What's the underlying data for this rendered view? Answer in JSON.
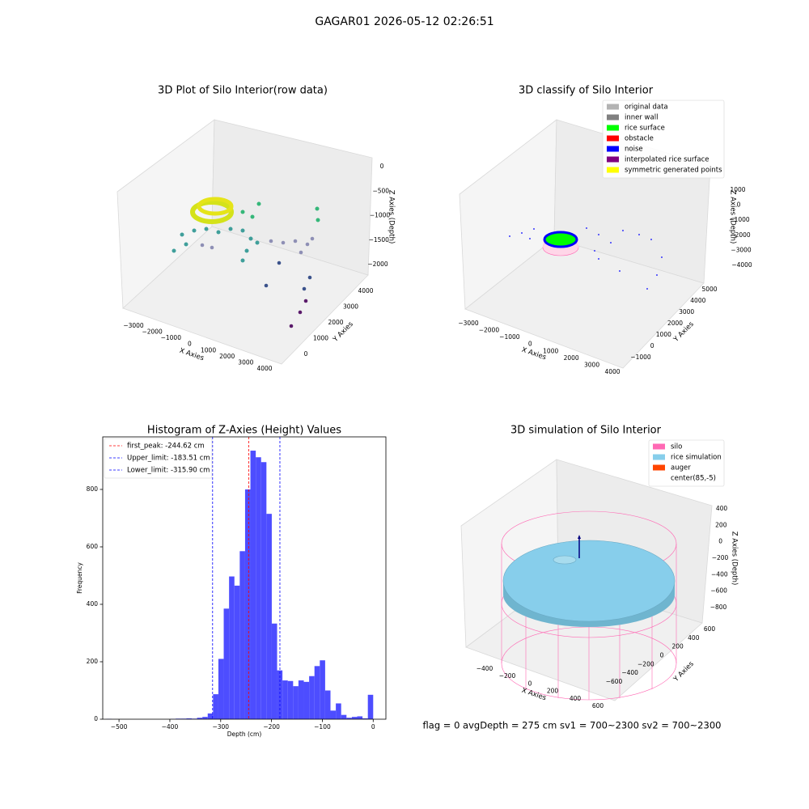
{
  "title": "GAGAR01 2026-05-12 02:26:51",
  "footer": "flag = 0     avgDepth = 275 cm  sv1 = 700~2300  sv2 = 700~2300",
  "chart_data": [
    {
      "type": "scatter3d",
      "title": "3D Plot of Silo Interior(row data)",
      "xlabel": "X Axies",
      "ylabel": "Y Axies",
      "zlabel": "Z Axies (Depth)",
      "xticks": [
        {
          "value": -3000,
          "label": "−3000"
        },
        {
          "value": -2000,
          "label": "−2000"
        },
        {
          "value": -1000,
          "label": "−1000"
        },
        0,
        1000,
        2000,
        3000,
        4000
      ],
      "yticks": [
        0,
        1000,
        2000,
        3000,
        4000
      ],
      "zticks": [
        0,
        {
          "value": -500,
          "label": "−500"
        },
        {
          "value": -1000,
          "label": "−1000"
        },
        {
          "value": -1500,
          "label": "−1500"
        },
        {
          "value": -2000,
          "label": "−2000"
        }
      ]
    },
    {
      "type": "scatter3d",
      "title": "3D classify of Silo Interior",
      "xlabel": "X Axies",
      "ylabel": "Y Axies",
      "zlabel": "Z Axies (Depth)",
      "xticks": [
        {
          "value": -3000,
          "label": "−3000"
        },
        {
          "value": -2000,
          "label": "−2000"
        },
        {
          "value": -1000,
          "label": "−1000"
        },
        0,
        1000,
        2000,
        3000,
        4000
      ],
      "yticks": [
        {
          "value": -1000,
          "label": "−1000"
        },
        0,
        1000,
        2000,
        3000,
        4000,
        5000
      ],
      "zticks": [
        1000,
        0,
        {
          "value": -1000,
          "label": "−1000"
        },
        {
          "value": -2000,
          "label": "−2000"
        },
        {
          "value": -3000,
          "label": "−3000"
        },
        {
          "value": -4000,
          "label": "−4000"
        }
      ],
      "legend": [
        {
          "label": "original data",
          "color": "#b3b3b3"
        },
        {
          "label": "inner wall",
          "color": "#808080"
        },
        {
          "label": "rice surface",
          "color": "#00ff00"
        },
        {
          "label": "obstacle",
          "color": "#ff0000"
        },
        {
          "label": "noise",
          "color": "#0000ff"
        },
        {
          "label": "interpolated rice surface",
          "color": "#800080"
        },
        {
          "label": "symmetric generated points",
          "color": "#ffff00"
        }
      ]
    },
    {
      "type": "histogram",
      "title": "Histogram of Z-Axies (Height) Values",
      "xlabel": "Depth (cm)",
      "ylabel": "Frequency",
      "color": "#4d4dff",
      "bins": [
        -525,
        -514.5,
        -504,
        -493.5,
        -483,
        -472.5,
        -462,
        -451.5,
        -441,
        -430.5,
        -420,
        -409.5,
        -399,
        -388.5,
        -378,
        -367.5,
        -357,
        -346.5,
        -336,
        -325.5,
        -315,
        -304.5,
        -294,
        -283.5,
        -273,
        -262.5,
        -252,
        -241.5,
        -231,
        -220.5,
        -210,
        -199.5,
        -189,
        -178.5,
        -168,
        -157.5,
        -147,
        -136.5,
        -126,
        -115.5,
        -105,
        -94.5,
        -84,
        -73.5,
        -63,
        -52.5,
        -42,
        -31.5,
        -21,
        -10.5,
        0
      ],
      "values": [
        1,
        0,
        0,
        0,
        0,
        0,
        0,
        0,
        0,
        0,
        0,
        0,
        1,
        2,
        2,
        3,
        2,
        5,
        8,
        20,
        87,
        210,
        385,
        497,
        465,
        585,
        800,
        935,
        912,
        895,
        715,
        333,
        170,
        135,
        133,
        115,
        135,
        130,
        150,
        185,
        205,
        100,
        30,
        55,
        15,
        5,
        8,
        10,
        3,
        85
      ],
      "xlim": [
        -532,
        25
      ],
      "ylim": [
        0,
        983
      ],
      "xticks": [
        {
          "value": -500,
          "label": "−500"
        },
        {
          "value": -400,
          "label": "−400"
        },
        {
          "value": -300,
          "label": "−300"
        },
        {
          "value": -200,
          "label": "−200"
        },
        {
          "value": -100,
          "label": "−100"
        },
        0
      ],
      "yticks": [
        0,
        200,
        400,
        600,
        800
      ],
      "legend_corner": "upper left",
      "vlines": [
        {
          "label": "first_peak: -244.62 cm",
          "value": -244.62,
          "color": "#ff0000"
        },
        {
          "label": "Upper_limit: -183.51 cm",
          "value": -183.51,
          "color": "#0000ff"
        },
        {
          "label": "Lower_limit: -315.90 cm",
          "value": -315.9,
          "color": "#0000ff"
        }
      ]
    },
    {
      "type": "scatter3d",
      "title": "3D simulation of Silo Interior",
      "xlabel": "X Axies",
      "ylabel": "Y Axies",
      "zlabel": "Z Axies (Depth)",
      "xticks": [
        {
          "value": -400,
          "label": "−400"
        },
        {
          "value": -200,
          "label": "−200"
        },
        0,
        200,
        400,
        600
      ],
      "yticks": [
        {
          "value": -600,
          "label": "−600"
        },
        {
          "value": -400,
          "label": "−400"
        },
        {
          "value": -200,
          "label": "−200"
        },
        0,
        200,
        400,
        600
      ],
      "zticks": [
        400,
        200,
        0,
        {
          "value": -200,
          "label": "−200"
        },
        {
          "value": -400,
          "label": "−400"
        },
        {
          "value": -600,
          "label": "−600"
        },
        {
          "value": -800,
          "label": "−800"
        }
      ],
      "legend": [
        {
          "label": "silo",
          "color": "#ff69b4"
        },
        {
          "label": "rice simulation",
          "color": "#87ceeb"
        },
        {
          "label": "auger",
          "color": "#ff4500"
        },
        {
          "label": "center(85,-5)",
          "color": "#ffffff"
        }
      ]
    }
  ]
}
